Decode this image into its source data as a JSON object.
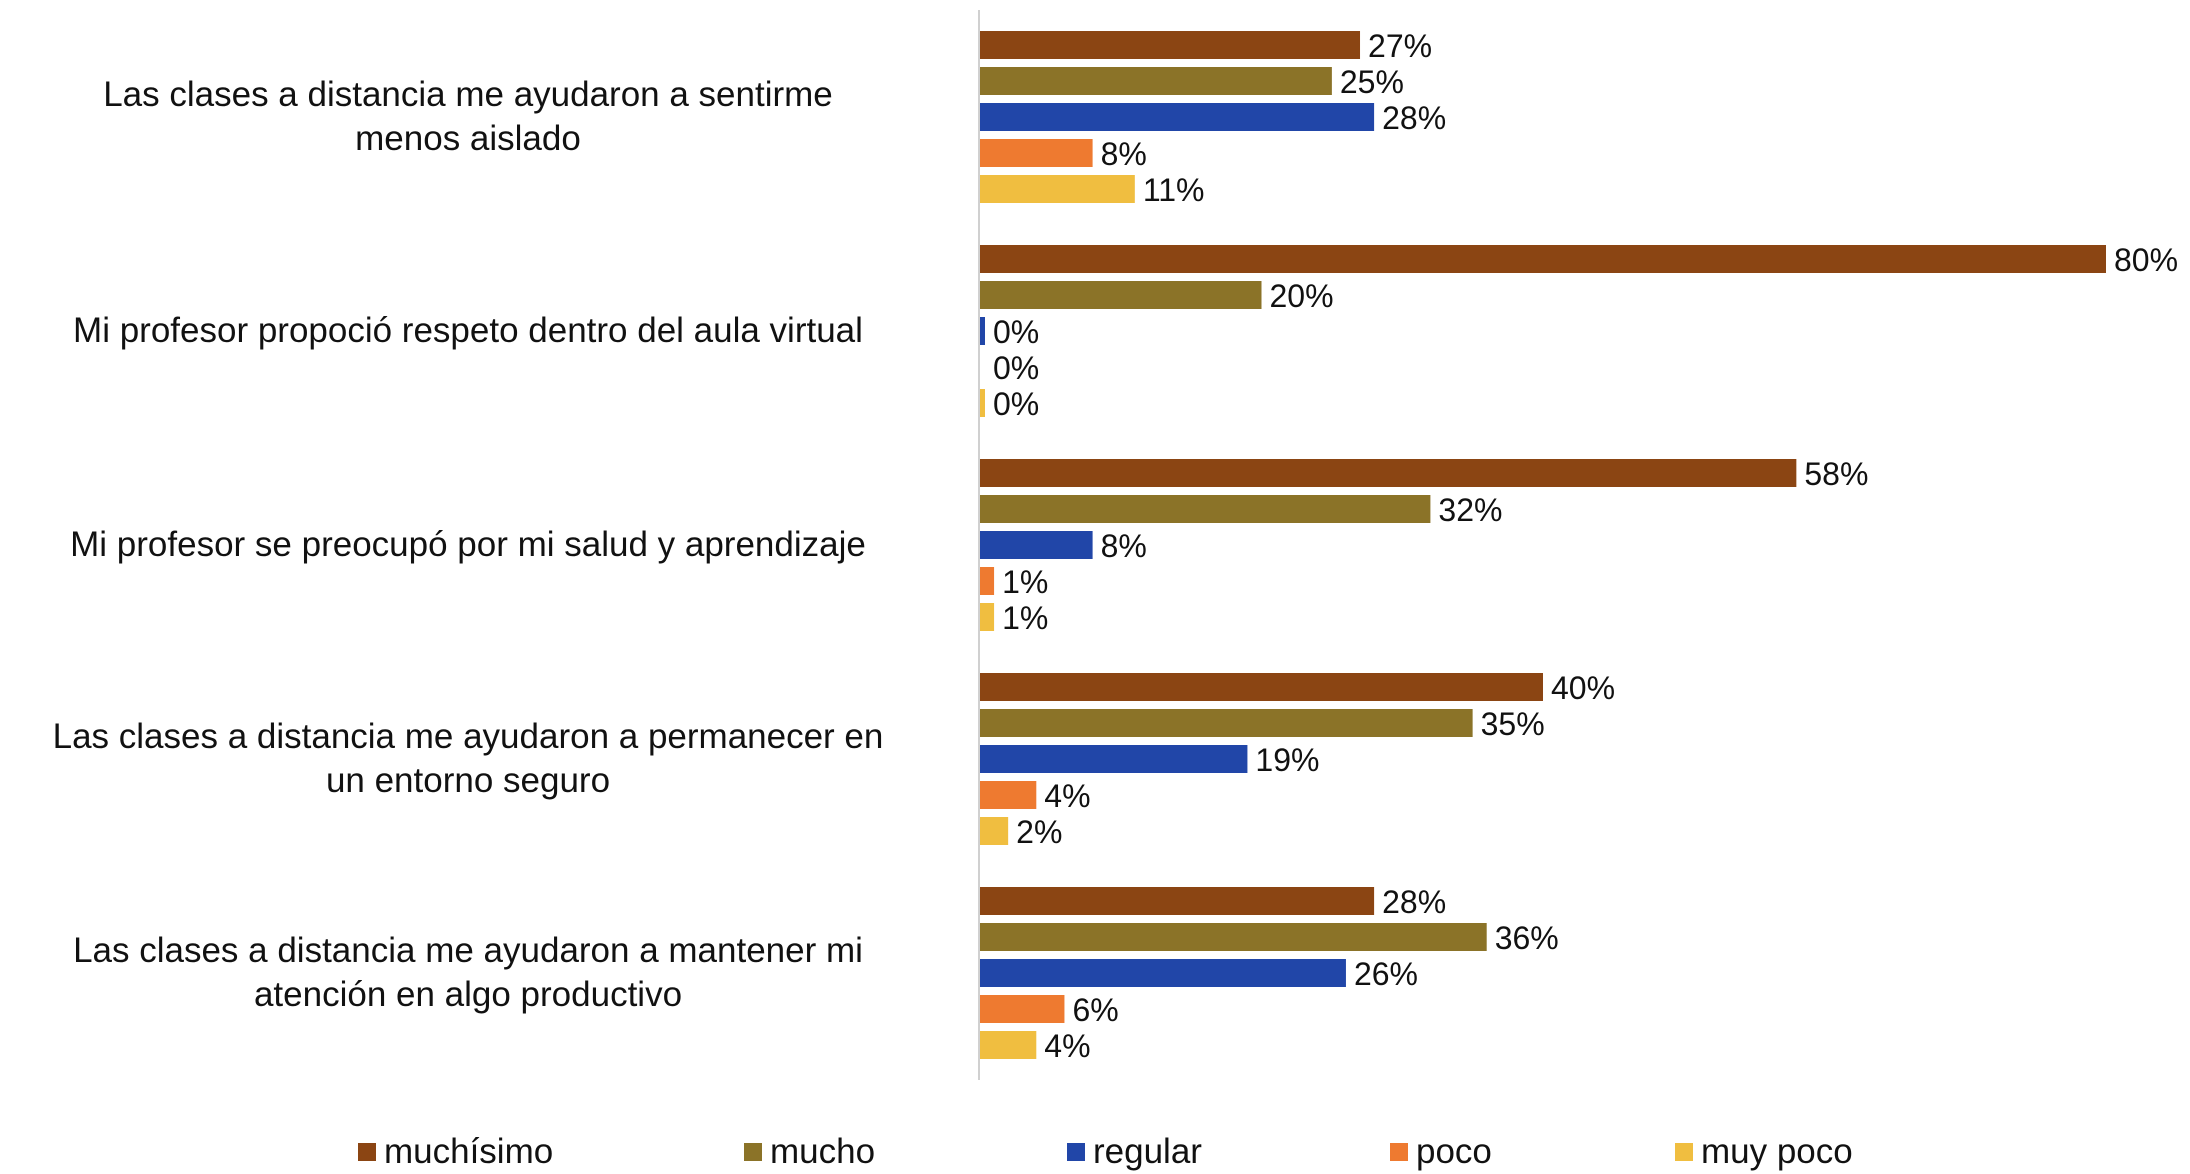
{
  "chart_data": {
    "type": "bar",
    "orientation": "horizontal",
    "title": "",
    "xlabel": "",
    "ylabel": "",
    "xlim": [
      0,
      80
    ],
    "grid": false,
    "legend_position": "bottom",
    "categories": [
      "Las clases a distancia me ayudaron a sentirme\nmenos aislado",
      "Mi profesor propoció respeto dentro del aula virtual",
      "Mi profesor se preocupó por mi salud y aprendizaje",
      "Las clases a distancia me ayudaron a permanecer en\nun entorno seguro",
      "Las clases a distancia me ayudaron a mantener mi\natención en algo productivo"
    ],
    "series": [
      {
        "name": "muchísimo",
        "color": "#8B4513",
        "values": [
          27,
          80,
          58,
          40,
          28
        ]
      },
      {
        "name": "mucho",
        "color": "#8B7328",
        "values": [
          25,
          20,
          32,
          35,
          36
        ]
      },
      {
        "name": "regular",
        "color": "#2146A8",
        "values": [
          28,
          0,
          8,
          19,
          26
        ]
      },
      {
        "name": "poco",
        "color": "#EE7A30",
        "values": [
          8,
          0,
          1,
          4,
          6
        ]
      },
      {
        "name": "muy poco",
        "color": "#F0BE40",
        "values": [
          11,
          0,
          1,
          2,
          4
        ]
      }
    ],
    "value_suffix": "%"
  }
}
